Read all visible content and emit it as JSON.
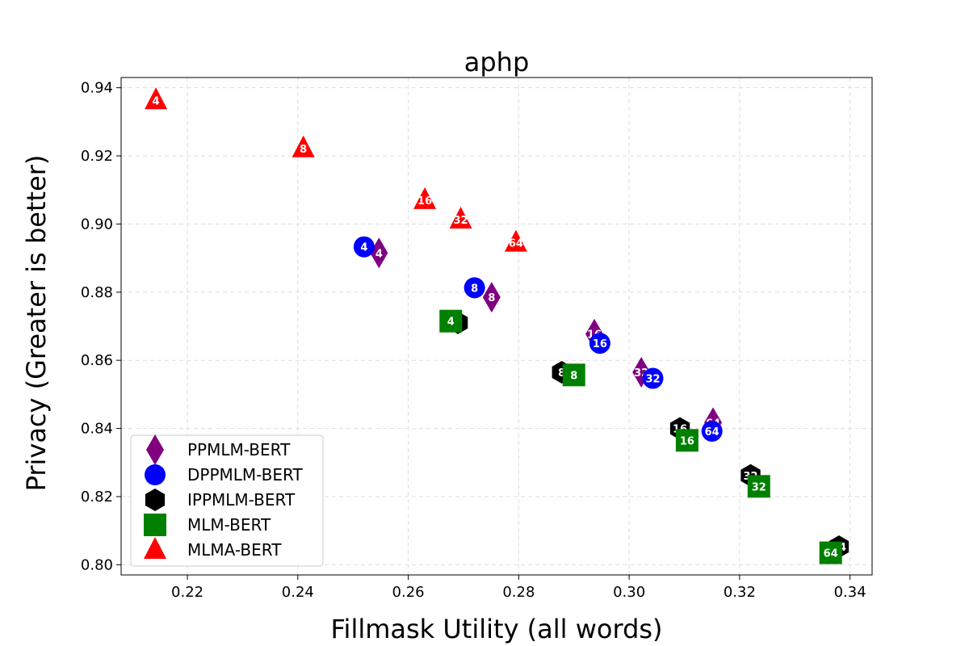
{
  "chart_data": {
    "type": "scatter",
    "title": "aphp",
    "xlabel": "Fillmask Utility (all words)",
    "ylabel": "Privacy (Greater is better)",
    "xlim": [
      0.208,
      0.344
    ],
    "ylim": [
      0.797,
      0.943
    ],
    "xticks": [
      0.22,
      0.24,
      0.26,
      0.28,
      0.3,
      0.32,
      0.34
    ],
    "yticks": [
      0.8,
      0.82,
      0.84,
      0.86,
      0.88,
      0.9,
      0.92,
      0.94
    ],
    "xtick_labels": [
      "0.22",
      "0.24",
      "0.26",
      "0.28",
      "0.30",
      "0.32",
      "0.34"
    ],
    "ytick_labels": [
      "0.80",
      "0.82",
      "0.84",
      "0.86",
      "0.88",
      "0.90",
      "0.92",
      "0.94"
    ],
    "grid": true,
    "legend_position": "lower-left",
    "series": [
      {
        "name": "PPMLM-BERT",
        "marker": "diamond",
        "color": "#800080",
        "points": [
          {
            "label": "4",
            "x": 0.2547,
            "y": 0.8915
          },
          {
            "label": "8",
            "x": 0.2751,
            "y": 0.8785
          },
          {
            "label": "16",
            "x": 0.2937,
            "y": 0.8677
          },
          {
            "label": "32",
            "x": 0.3022,
            "y": 0.8565
          },
          {
            "label": "64",
            "x": 0.3152,
            "y": 0.8417
          }
        ]
      },
      {
        "name": "DPPMLM-BERT",
        "marker": "circle",
        "color": "#0000ff",
        "points": [
          {
            "label": "4",
            "x": 0.252,
            "y": 0.8933
          },
          {
            "label": "8",
            "x": 0.272,
            "y": 0.8813
          },
          {
            "label": "16",
            "x": 0.2947,
            "y": 0.865
          },
          {
            "label": "32",
            "x": 0.3043,
            "y": 0.8547
          },
          {
            "label": "64",
            "x": 0.315,
            "y": 0.8392
          }
        ]
      },
      {
        "name": "IPPMLM-BERT",
        "marker": "hexagon",
        "color": "#000000",
        "points": [
          {
            "label": "4",
            "x": 0.269,
            "y": 0.871
          },
          {
            "label": "8",
            "x": 0.2878,
            "y": 0.8565
          },
          {
            "label": "16",
            "x": 0.3092,
            "y": 0.84
          },
          {
            "label": "32",
            "x": 0.322,
            "y": 0.8262
          },
          {
            "label": "64",
            "x": 0.338,
            "y": 0.8053
          }
        ]
      },
      {
        "name": "MLM-BERT",
        "marker": "square",
        "color": "#008000",
        "points": [
          {
            "label": "4",
            "x": 0.2677,
            "y": 0.8715
          },
          {
            "label": "8",
            "x": 0.29,
            "y": 0.8557
          },
          {
            "label": "16",
            "x": 0.3105,
            "y": 0.8365
          },
          {
            "label": "32",
            "x": 0.3235,
            "y": 0.823
          },
          {
            "label": "64",
            "x": 0.3365,
            "y": 0.8035
          }
        ]
      },
      {
        "name": "MLMA-BERT",
        "marker": "triangle",
        "color": "#ff0000",
        "points": [
          {
            "label": "4",
            "x": 0.2143,
            "y": 0.9363
          },
          {
            "label": "8",
            "x": 0.241,
            "y": 0.9222
          },
          {
            "label": "16",
            "x": 0.263,
            "y": 0.907
          },
          {
            "label": "32",
            "x": 0.2695,
            "y": 0.9013
          },
          {
            "label": "64",
            "x": 0.2795,
            "y": 0.8945
          }
        ]
      }
    ]
  }
}
